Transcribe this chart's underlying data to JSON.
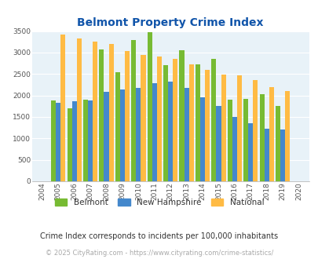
{
  "title": "Belmont Property Crime Index",
  "years": [
    2004,
    2005,
    2006,
    2007,
    2008,
    2009,
    2010,
    2011,
    2012,
    2013,
    2014,
    2015,
    2016,
    2017,
    2018,
    2019,
    2020
  ],
  "belmont": [
    0,
    1880,
    1700,
    1900,
    3080,
    2550,
    3300,
    3480,
    2700,
    3060,
    2730,
    2850,
    1900,
    1920,
    2030,
    1750,
    0
  ],
  "new_hampshire": [
    0,
    1830,
    1860,
    1890,
    2090,
    2140,
    2170,
    2290,
    2330,
    2170,
    1960,
    1750,
    1500,
    1350,
    1230,
    1210,
    0
  ],
  "national": [
    0,
    3420,
    3330,
    3260,
    3200,
    3030,
    2950,
    2900,
    2850,
    2730,
    2590,
    2490,
    2460,
    2360,
    2190,
    2110,
    0
  ],
  "belmont_color": "#77bb33",
  "nh_color": "#4488cc",
  "national_color": "#ffbb44",
  "bg_color": "#ddeeff",
  "plot_bg": "#e8f2f8",
  "title_color": "#1155aa",
  "ylim": [
    0,
    3500
  ],
  "yticks": [
    0,
    500,
    1000,
    1500,
    2000,
    2500,
    3000,
    3500
  ],
  "subtitle": "Crime Index corresponds to incidents per 100,000 inhabitants",
  "footer": "© 2025 CityRating.com - https://www.cityrating.com/crime-statistics/",
  "subtitle_color": "#333333",
  "footer_color": "#aaaaaa",
  "legend_text_color": "#333333"
}
